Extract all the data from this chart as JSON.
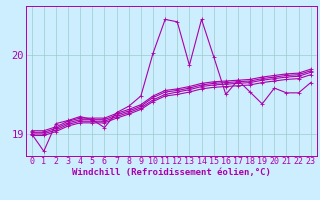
{
  "background_color": "#cceeff",
  "line_color": "#aa00aa",
  "grid_color": "#99cccc",
  "xlabel": "Windchill (Refroidissement éolien,°C)",
  "xlim_min": -0.5,
  "xlim_max": 23.5,
  "ylim_min": 18.72,
  "ylim_max": 20.62,
  "yticks": [
    19,
    20
  ],
  "xticks": [
    0,
    1,
    2,
    3,
    4,
    5,
    6,
    7,
    8,
    9,
    10,
    11,
    12,
    13,
    14,
    15,
    16,
    17,
    18,
    19,
    20,
    21,
    22,
    23
  ],
  "main_x": [
    0,
    1,
    2,
    3,
    4,
    5,
    6,
    7,
    8,
    9,
    10,
    11,
    12,
    13,
    14,
    15,
    16,
    17,
    18,
    19,
    20,
    21,
    22,
    23
  ],
  "main_y": [
    19.0,
    18.78,
    19.13,
    19.17,
    19.22,
    19.18,
    19.08,
    19.27,
    19.35,
    19.48,
    20.02,
    20.45,
    20.42,
    19.87,
    20.45,
    19.98,
    19.5,
    19.68,
    19.53,
    19.38,
    19.58,
    19.52,
    19.52,
    19.65
  ],
  "trend_lines": [
    [
      19.0,
      19.0,
      19.05,
      19.12,
      19.16,
      19.16,
      19.16,
      19.22,
      19.27,
      19.33,
      19.43,
      19.5,
      19.53,
      19.56,
      19.6,
      19.62,
      19.63,
      19.64,
      19.65,
      19.68,
      19.7,
      19.72,
      19.73,
      19.78
    ],
    [
      19.02,
      19.02,
      19.07,
      19.14,
      19.18,
      19.18,
      19.18,
      19.24,
      19.29,
      19.35,
      19.46,
      19.53,
      19.55,
      19.58,
      19.62,
      19.64,
      19.65,
      19.66,
      19.67,
      19.7,
      19.72,
      19.74,
      19.75,
      19.8
    ],
    [
      18.98,
      18.98,
      19.03,
      19.1,
      19.14,
      19.14,
      19.14,
      19.2,
      19.25,
      19.31,
      19.41,
      19.48,
      19.5,
      19.53,
      19.57,
      19.59,
      19.6,
      19.61,
      19.62,
      19.65,
      19.67,
      19.69,
      19.7,
      19.75
    ],
    [
      19.04,
      19.04,
      19.09,
      19.16,
      19.2,
      19.2,
      19.2,
      19.26,
      19.31,
      19.37,
      19.48,
      19.55,
      19.57,
      19.6,
      19.64,
      19.66,
      19.67,
      19.68,
      19.69,
      19.72,
      19.74,
      19.76,
      19.77,
      19.82
    ]
  ],
  "font_size_tick": 6,
  "font_size_label": 6.5,
  "marker_size": 2.5,
  "line_width": 0.8
}
